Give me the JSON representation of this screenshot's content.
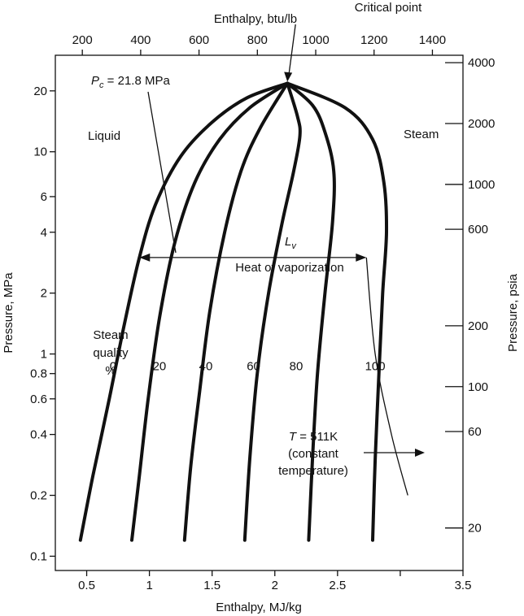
{
  "chart_data": {
    "type": "line",
    "title": "",
    "xlabel": "Enthalpy, MJ/kg",
    "ylabel": "Pressure, MPa",
    "x2label": "Enthalpy, btu/lb",
    "y2label": "Pressure, psia",
    "xlim": [
      0.25,
      3.5
    ],
    "ylim": [
      0.085,
      30
    ],
    "y_scale": "log",
    "grid": false,
    "x_ticks": [
      {
        "value": 0.5,
        "label": "0.5"
      },
      {
        "value": 1,
        "label": "1"
      },
      {
        "value": 1.5,
        "label": "1.5"
      },
      {
        "value": 2,
        "label": "2"
      },
      {
        "value": 2.5,
        "label": "2.5"
      },
      {
        "value": 3.5,
        "label": "3.5"
      }
    ],
    "x_minor_ticks": [
      3.0
    ],
    "y_ticks": [
      {
        "value": 0.1,
        "label": "0.1"
      },
      {
        "value": 0.2,
        "label": "0.2"
      },
      {
        "value": 0.4,
        "label": "0.4"
      },
      {
        "value": 0.6,
        "label": "0.6"
      },
      {
        "value": 0.8,
        "label": "0.8"
      },
      {
        "value": 1,
        "label": "1"
      },
      {
        "value": 2,
        "label": "2"
      },
      {
        "value": 4,
        "label": "4"
      },
      {
        "value": 6,
        "label": "6"
      },
      {
        "value": 10,
        "label": "10"
      },
      {
        "value": 20,
        "label": "20"
      }
    ],
    "x2_ticks": [
      {
        "value": 200,
        "label": "200"
      },
      {
        "value": 400,
        "label": "400"
      },
      {
        "value": 600,
        "label": "600"
      },
      {
        "value": 800,
        "label": "800"
      },
      {
        "value": 1000,
        "label": "1000"
      },
      {
        "value": 1200,
        "label": "1200"
      },
      {
        "value": 1400,
        "label": "1400"
      }
    ],
    "y2_ticks": [
      {
        "value": 20,
        "label": "20"
      },
      {
        "value": 60,
        "label": "60"
      },
      {
        "value": 100,
        "label": "100"
      },
      {
        "value": 200,
        "label": "200"
      },
      {
        "value": 600,
        "label": "600"
      },
      {
        "value": 1000,
        "label": "1000"
      },
      {
        "value": 2000,
        "label": "2000"
      },
      {
        "value": 4000,
        "label": "4000"
      }
    ],
    "critical_point": {
      "x": 2.1,
      "y": 21.8
    },
    "series": [
      {
        "label": "0",
        "label_at": [
          0.71,
          1.0
        ],
        "points": [
          [
            0.45,
            0.12
          ],
          [
            0.55,
            0.25
          ],
          [
            0.68,
            0.6
          ],
          [
            0.8,
            1.4
          ],
          [
            0.92,
            3.0
          ],
          [
            1.05,
            5.5
          ],
          [
            1.25,
            9.5
          ],
          [
            1.5,
            14
          ],
          [
            1.78,
            18.5
          ],
          [
            2.1,
            21.8
          ]
        ]
      },
      {
        "label": "20",
        "label_at": [
          1.08,
          1.0
        ],
        "points": [
          [
            0.86,
            0.12
          ],
          [
            0.92,
            0.25
          ],
          [
            0.99,
            0.6
          ],
          [
            1.08,
            1.5
          ],
          [
            1.2,
            3.5
          ],
          [
            1.36,
            7
          ],
          [
            1.56,
            11.5
          ],
          [
            1.8,
            16.5
          ],
          [
            2.1,
            21.8
          ]
        ]
      },
      {
        "label": "40",
        "label_at": [
          1.45,
          1.0
        ],
        "points": [
          [
            1.28,
            0.12
          ],
          [
            1.33,
            0.28
          ],
          [
            1.4,
            0.65
          ],
          [
            1.48,
            1.6
          ],
          [
            1.6,
            4
          ],
          [
            1.73,
            8
          ],
          [
            1.88,
            13
          ],
          [
            2.1,
            21.8
          ]
        ]
      },
      {
        "label": "60",
        "label_at": [
          1.83,
          1.0
        ],
        "points": [
          [
            1.76,
            0.12
          ],
          [
            1.8,
            0.3
          ],
          [
            1.86,
            0.8
          ],
          [
            1.95,
            2
          ],
          [
            2.06,
            4.5
          ],
          [
            2.15,
            8
          ],
          [
            2.2,
            12
          ],
          [
            2.18,
            15
          ],
          [
            2.1,
            21.8
          ]
        ]
      },
      {
        "label": "80",
        "label_at": [
          2.17,
          1.0
        ],
        "points": [
          [
            2.27,
            0.12
          ],
          [
            2.3,
            0.3
          ],
          [
            2.34,
            0.8
          ],
          [
            2.4,
            2
          ],
          [
            2.46,
            4.5
          ],
          [
            2.47,
            8
          ],
          [
            2.4,
            12.5
          ],
          [
            2.3,
            17
          ],
          [
            2.1,
            21.8
          ]
        ]
      },
      {
        "label": "100",
        "label_at": [
          2.8,
          1.0
        ],
        "points": [
          [
            2.78,
            0.12
          ],
          [
            2.8,
            0.3
          ],
          [
            2.83,
            0.8
          ],
          [
            2.86,
            2
          ],
          [
            2.89,
            4
          ],
          [
            2.87,
            7
          ],
          [
            2.78,
            11.5
          ],
          [
            2.56,
            16.5
          ],
          [
            2.1,
            21.8
          ]
        ]
      }
    ],
    "isotherm": {
      "points": [
        [
          2.73,
          3.0
        ],
        [
          2.8,
          1.0
        ],
        [
          2.93,
          0.4
        ],
        [
          3.06,
          0.2
        ]
      ]
    },
    "heat_of_vaporization": {
      "x_from": 0.92,
      "x_to": 2.73,
      "y": 3.0
    },
    "annotations": {
      "critical_point": "Critical point",
      "pc_label": "P",
      "pc_sub": "c",
      "pc_value": " = 21.8 MPa",
      "liquid": "Liquid",
      "steam": "Steam",
      "lv_main": "L",
      "lv_sub": "v",
      "heat_of_vaporization": "Heat of vaporization",
      "steam_quality_1": "Steam",
      "steam_quality_2": "quality",
      "steam_quality_3": "%",
      "temp_T": "T",
      "temp_value": " = 511K",
      "temp_line2": "(constant",
      "temp_line3": "temperature)"
    }
  }
}
